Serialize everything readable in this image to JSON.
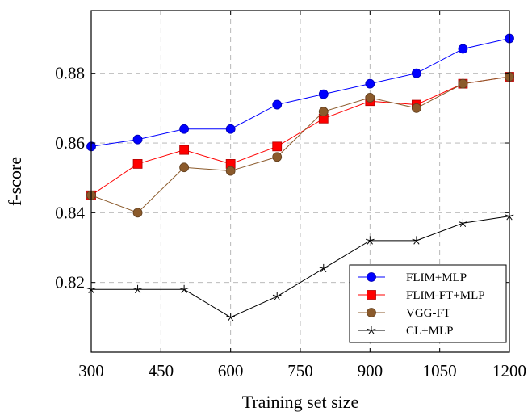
{
  "chart_data": {
    "type": "line",
    "title": "",
    "xlabel": "Training set size",
    "ylabel": "f-score",
    "x": [
      300,
      400,
      500,
      600,
      700,
      800,
      900,
      1000,
      1100,
      1200
    ],
    "xlim": [
      300,
      1200
    ],
    "ylim": [
      0.8,
      0.898
    ],
    "xticks": [
      300,
      450,
      600,
      750,
      900,
      1050,
      1200
    ],
    "yticks": [
      0.82,
      0.84,
      0.86,
      0.88
    ],
    "ytick_labels": [
      "0.82",
      "0.84",
      "0.86",
      "0.88"
    ],
    "grid": true,
    "legend_position": "bottom-right",
    "series": [
      {
        "name": "FLIM+MLP",
        "color": "#0000ff",
        "marker": "circle",
        "values": [
          0.859,
          0.861,
          0.864,
          0.864,
          0.871,
          0.874,
          0.877,
          0.88,
          0.887,
          0.89
        ]
      },
      {
        "name": "FLIM-FT+MLP",
        "color": "#ff0000",
        "marker": "square",
        "values": [
          0.845,
          0.854,
          0.858,
          0.854,
          0.859,
          0.867,
          0.872,
          0.871,
          0.877,
          0.879
        ]
      },
      {
        "name": "VGG-FT",
        "color": "#8b5a2b",
        "marker": "circle",
        "values": [
          0.845,
          0.84,
          0.853,
          0.852,
          0.856,
          0.869,
          0.873,
          0.87,
          0.877,
          0.879
        ]
      },
      {
        "name": "CL+MLP",
        "color": "#000000",
        "marker": "star",
        "values": [
          0.818,
          0.818,
          0.818,
          0.81,
          0.816,
          0.824,
          0.832,
          0.832,
          0.837,
          0.839
        ]
      }
    ]
  }
}
